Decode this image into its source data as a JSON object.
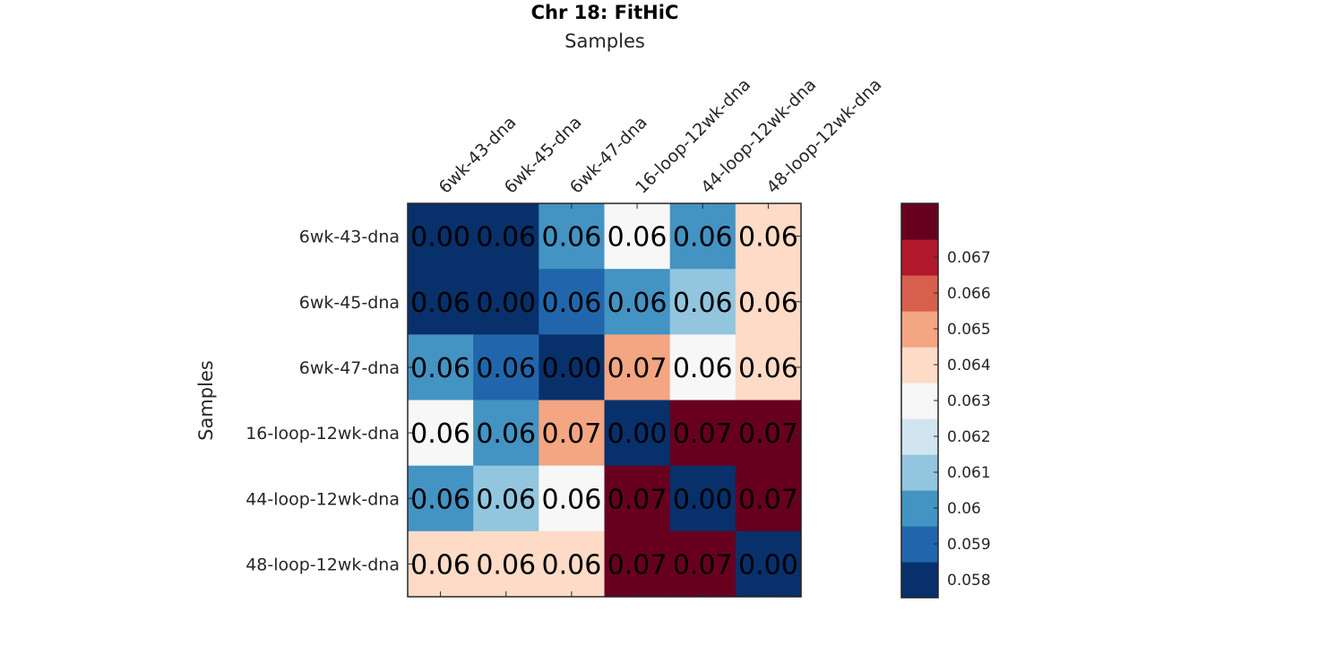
{
  "chart_data": {
    "type": "heatmap",
    "title": "Chr 18: FitHiC",
    "xlabel": "Samples",
    "ylabel": "Samples",
    "x_categories": [
      "6wk-43-dna",
      "6wk-45-dna",
      "6wk-47-dna",
      "16-loop-12wk-dna",
      "44-loop-12wk-dna",
      "48-loop-12wk-dna"
    ],
    "y_categories": [
      "6wk-43-dna",
      "6wk-45-dna",
      "6wk-47-dna",
      "16-loop-12wk-dna",
      "44-loop-12wk-dna",
      "48-loop-12wk-dna"
    ],
    "values": [
      [
        0.0,
        0.058,
        0.0602,
        0.0628,
        0.0602,
        0.0645
      ],
      [
        0.058,
        0.0,
        0.0592,
        0.0602,
        0.0612,
        0.0645
      ],
      [
        0.0602,
        0.0592,
        0.0,
        0.0655,
        0.0628,
        0.0645
      ],
      [
        0.0628,
        0.0602,
        0.0655,
        0.0,
        0.0675,
        0.0675
      ],
      [
        0.0602,
        0.0612,
        0.0628,
        0.0675,
        0.0,
        0.0675
      ],
      [
        0.0645,
        0.0645,
        0.0645,
        0.0675,
        0.0675,
        0.0
      ]
    ],
    "cell_labels": [
      [
        "0.00",
        "0.06",
        "0.06",
        "0.06",
        "0.06",
        "0.06"
      ],
      [
        "0.06",
        "0.00",
        "0.06",
        "0.06",
        "0.06",
        "0.06"
      ],
      [
        "0.06",
        "0.06",
        "0.00",
        "0.07",
        "0.06",
        "0.06"
      ],
      [
        "0.06",
        "0.06",
        "0.07",
        "0.00",
        "0.07",
        "0.07"
      ],
      [
        "0.06",
        "0.06",
        "0.06",
        "0.07",
        "0.00",
        "0.07"
      ],
      [
        "0.06",
        "0.06",
        "0.06",
        "0.07",
        "0.07",
        "0.00"
      ]
    ],
    "colorbar": {
      "range": [
        0.0575,
        0.0685
      ],
      "ticks": [
        0.058,
        0.059,
        0.06,
        0.061,
        0.062,
        0.063,
        0.064,
        0.065,
        0.066,
        0.067
      ],
      "tick_labels": [
        "0.058",
        "0.059",
        "0.06",
        "0.061",
        "0.062",
        "0.063",
        "0.064",
        "0.065",
        "0.066",
        "0.067"
      ],
      "colors": [
        "#08306b",
        "#2166ac",
        "#4393c3",
        "#92c5de",
        "#d1e5f0",
        "#f7f7f7",
        "#fddbc7",
        "#f4a582",
        "#d6604d",
        "#b2182b",
        "#67001f"
      ]
    },
    "grid": false,
    "legend": "colorbar-right"
  }
}
